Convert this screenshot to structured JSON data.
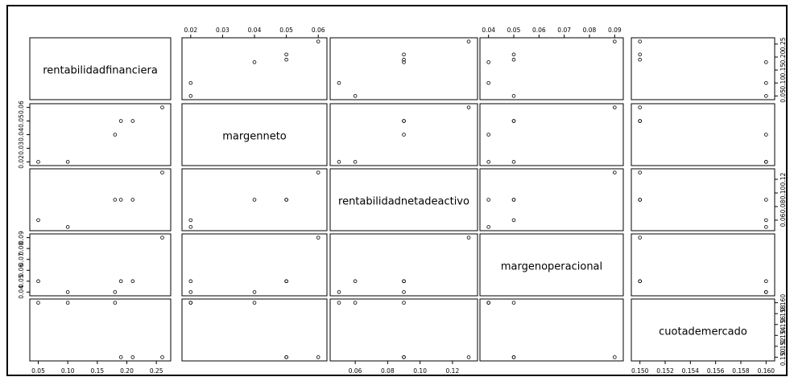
{
  "chart_data": {
    "type": "scatter",
    "variables": [
      {
        "name": "rentabilidadfinanciera",
        "range": [
          0.05,
          0.26
        ],
        "ticks": [
          0.05,
          0.1,
          0.15,
          0.2,
          0.25
        ],
        "tick_labels": [
          "0.05",
          "0.10",
          "0.15",
          "0.20",
          "0.25"
        ],
        "values": [
          0.05,
          0.1,
          0.18,
          0.19,
          0.21,
          0.26
        ]
      },
      {
        "name": "margenneto",
        "range": [
          0.02,
          0.06
        ],
        "ticks": [
          0.02,
          0.03,
          0.04,
          0.05,
          0.06
        ],
        "tick_labels": [
          "0.02",
          "0.03",
          "0.04",
          "0.05",
          "0.06"
        ],
        "values": [
          0.02,
          0.02,
          0.04,
          0.05,
          0.05,
          0.06
        ]
      },
      {
        "name": "rentabilidadnetadeactivo",
        "range": [
          0.05,
          0.13
        ],
        "ticks": [
          0.06,
          0.08,
          0.1,
          0.12
        ],
        "tick_labels": [
          "0.06",
          "0.08",
          "0.10",
          "0.12"
        ],
        "values": [
          0.06,
          0.05,
          0.09,
          0.09,
          0.09,
          0.13
        ]
      },
      {
        "name": "margenoperacional",
        "range": [
          0.04,
          0.09
        ],
        "ticks": [
          0.04,
          0.05,
          0.06,
          0.07,
          0.08,
          0.09
        ],
        "tick_labels": [
          "0.04",
          "0.05",
          "0.06",
          "0.07",
          "0.08",
          "0.09"
        ],
        "values": [
          0.05,
          0.04,
          0.04,
          0.05,
          0.05,
          0.09
        ]
      },
      {
        "name": "cuotademercado",
        "range": [
          0.15,
          0.16
        ],
        "ticks": [
          0.15,
          0.152,
          0.154,
          0.156,
          0.158,
          0.16
        ],
        "tick_labels": [
          "0.150",
          "0.152",
          "0.154",
          "0.156",
          "0.158",
          "0.160"
        ],
        "values": [
          0.16,
          0.16,
          0.16,
          0.15,
          0.15,
          0.15
        ]
      }
    ],
    "top_axis_vars": [
      1,
      3
    ],
    "bottom_axis_vars": [
      0,
      2,
      4
    ],
    "left_axis_vars": [
      1,
      3
    ],
    "right_axis_vars": [
      0,
      2,
      4
    ],
    "grid": false,
    "legend": "none"
  }
}
